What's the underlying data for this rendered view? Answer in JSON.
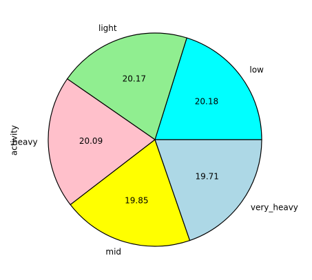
{
  "chart_data": {
    "type": "pie",
    "ylabel": "activity",
    "start_angle_deg": 0,
    "direction": "counterclockwise",
    "edge_color": "#000000",
    "slices": [
      {
        "label": "low",
        "value": 20.18,
        "value_label": "20.18",
        "color": "#00ffff"
      },
      {
        "label": "light",
        "value": 20.17,
        "value_label": "20.17",
        "color": "#90ee90"
      },
      {
        "label": "heavy",
        "value": 20.09,
        "value_label": "20.09",
        "color": "#ffc0cb"
      },
      {
        "label": "mid",
        "value": 19.85,
        "value_label": "19.85",
        "color": "#ffff00"
      },
      {
        "label": "very_heavy",
        "value": 19.71,
        "value_label": "19.71",
        "color": "#add8e6"
      }
    ]
  }
}
